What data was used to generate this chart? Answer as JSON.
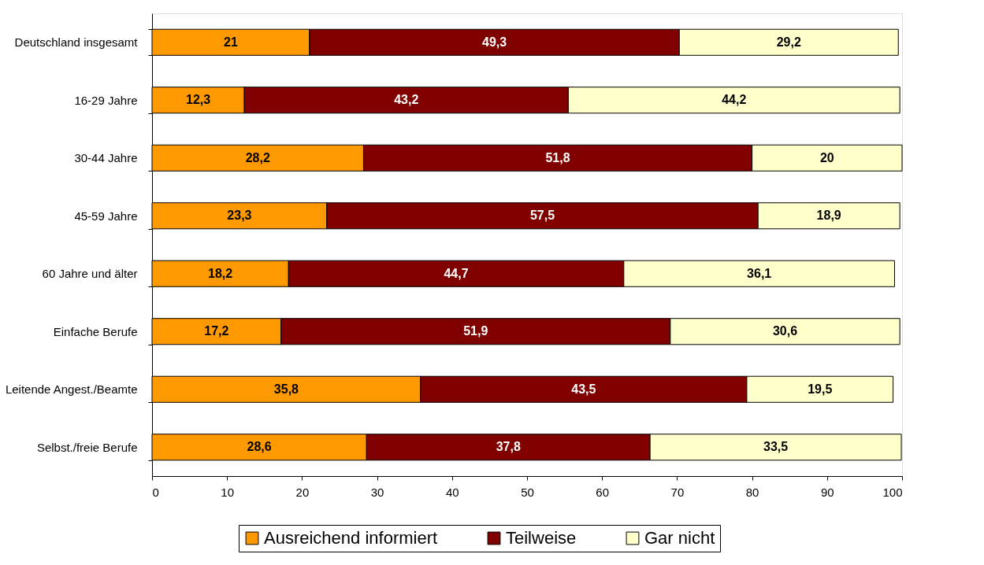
{
  "chart_data": {
    "type": "bar",
    "orientation": "horizontal",
    "stacked": true,
    "categories": [
      "Deutschland insgesamt",
      "16-29 Jahre",
      "30-44 Jahre",
      "45-59 Jahre",
      "60 Jahre und älter",
      "Einfache Berufe",
      "Leitende Angest./Beamte",
      "Selbst./freie Berufe"
    ],
    "series": [
      {
        "name": "Ausreichend informiert",
        "color": "#ff9900",
        "values": [
          21,
          12.3,
          28.2,
          23.3,
          18.2,
          17.2,
          35.8,
          28.6
        ],
        "value_labels": [
          "21",
          "12,3",
          "28,2",
          "23,3",
          "18,2",
          "17,2",
          "35,8",
          "28,6"
        ]
      },
      {
        "name": "Teilweise",
        "color": "#800000",
        "values": [
          49.3,
          43.2,
          51.8,
          57.5,
          44.7,
          51.9,
          43.5,
          37.8
        ],
        "value_labels": [
          "49,3",
          "43,2",
          "51,8",
          "57,5",
          "44,7",
          "51,9",
          "43,5",
          "37,8"
        ]
      },
      {
        "name": "Gar nicht",
        "color": "#ffffcc",
        "values": [
          29.2,
          44.2,
          20,
          18.9,
          36.1,
          30.6,
          19.5,
          33.5
        ],
        "value_labels": [
          "29,2",
          "44,2",
          "20",
          "18,9",
          "36,1",
          "30,6",
          "19,5",
          "33,5"
        ]
      }
    ],
    "xlim": [
      0,
      100
    ],
    "xticks": [
      0,
      10,
      20,
      30,
      40,
      50,
      60,
      70,
      80,
      90,
      100
    ],
    "grid": false,
    "legend": "bottom"
  }
}
